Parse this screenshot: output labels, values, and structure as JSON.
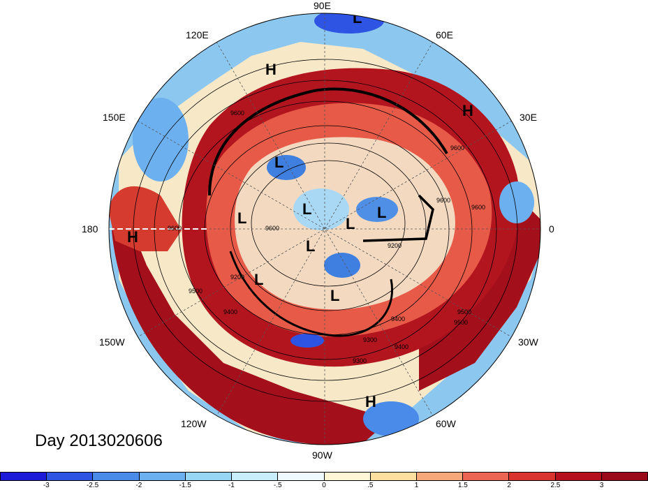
{
  "title": "Day 2013020606",
  "longitude_labels": {
    "lon_90e": "90E",
    "lon_120e": "120E",
    "lon_60e": "60E",
    "lon_150e": "150E",
    "lon_30e": "30E",
    "lon_180": "180",
    "lon_0": "0",
    "lon_150w": "150W",
    "lon_30w": "30W",
    "lon_120w": "120W",
    "lon_60w": "60W",
    "lon_90w": "90W"
  },
  "pressure_systems": [
    "L",
    "H",
    "H",
    "L",
    "L",
    "L",
    "L",
    "L",
    "L",
    "L",
    "L",
    "H",
    "H"
  ],
  "contour_labels": [
    "9600",
    "9600",
    "9600",
    "9500",
    "9400",
    "9300",
    "9200",
    "9200",
    "9600",
    "9400",
    "9500",
    "9300",
    "9400",
    "9600",
    "9600",
    "9500"
  ],
  "colorbar": {
    "ticks": [
      "-3",
      "-2.5",
      "-2",
      "-1.5",
      "-1",
      "-.5",
      "0",
      ".5",
      "1",
      "1.5",
      "2",
      "2.5",
      "3"
    ],
    "colors": [
      "#1d1ad8",
      "#2e54e3",
      "#4a8ae8",
      "#6cb0ef",
      "#98d6f6",
      "#c8eefb",
      "#eefafd",
      "#fff7d6",
      "#fde0a0",
      "#f6a87a",
      "#ec6553",
      "#d9342d",
      "#b5101d",
      "#9b0a1a"
    ]
  },
  "colors": {
    "warm_dark": "#a01019",
    "warm": "#d33a2f",
    "cool": "#3f7fe0",
    "cool_light": "#9fd3f5",
    "neutral": "#fbf1d8"
  }
}
